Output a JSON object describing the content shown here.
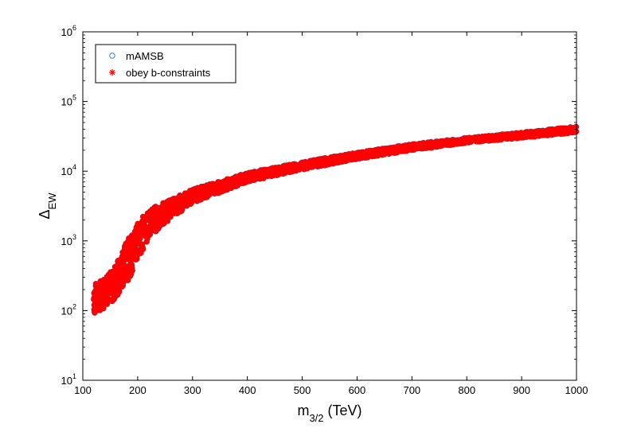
{
  "chart_data": {
    "type": "scatter",
    "title": "",
    "xlabel": "m",
    "xlabel_sub": "3/2",
    "xlabel_unit": " (TeV)",
    "ylabel": "Δ",
    "ylabel_sub": "EW",
    "xlim": [
      100,
      1000
    ],
    "ylim": [
      10,
      1000000
    ],
    "yscale": "log",
    "grid": false,
    "legend_position": "top-left",
    "x_ticks": [
      "100",
      "200",
      "300",
      "400",
      "500",
      "600",
      "700",
      "800",
      "900",
      "1000"
    ],
    "y_ticks": [
      {
        "base": "10",
        "exp": "1"
      },
      {
        "base": "10",
        "exp": "2"
      },
      {
        "base": "10",
        "exp": "3"
      },
      {
        "base": "10",
        "exp": "4"
      },
      {
        "base": "10",
        "exp": "5"
      },
      {
        "base": "10",
        "exp": "6"
      }
    ],
    "series": [
      {
        "name": "mAMSB",
        "marker": "circle",
        "color": "#3a7fc4"
      },
      {
        "name": "obey b-constraints",
        "marker": "asterisk",
        "color": "#ff0000"
      }
    ],
    "band": {
      "x": [
        120,
        140,
        160,
        180,
        200,
        220,
        250,
        300,
        400,
        500,
        600,
        700,
        800,
        900,
        1000
      ],
      "y_low": [
        90,
        110,
        150,
        250,
        500,
        1100,
        1800,
        3500,
        7000,
        10500,
        15000,
        20000,
        25500,
        30000,
        36000
      ],
      "y_high": [
        250,
        280,
        450,
        1000,
        1800,
        2800,
        3600,
        5500,
        9500,
        13500,
        18500,
        24500,
        30000,
        36000,
        44000
      ]
    }
  }
}
